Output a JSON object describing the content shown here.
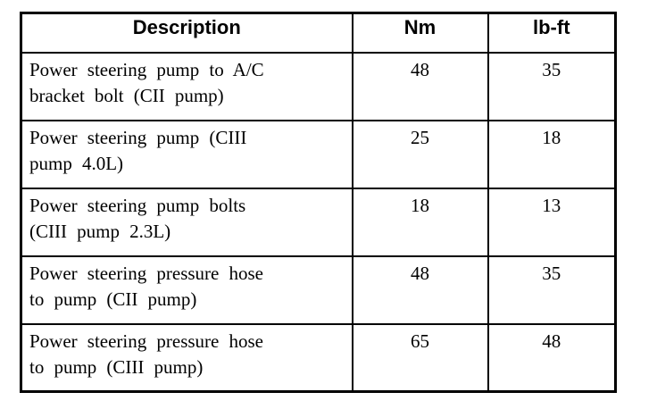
{
  "table": {
    "headers": {
      "description": "Description",
      "nm": "Nm",
      "lbft": "lb-ft"
    },
    "rows": [
      {
        "description_lines": [
          "Power steering pump to A/C",
          "bracket bolt (CII pump)"
        ],
        "nm": "48",
        "lbft": "35"
      },
      {
        "description_lines": [
          "Power steering pump (CIII",
          "pump 4.0L)"
        ],
        "nm": "25",
        "lbft": "18"
      },
      {
        "description_lines": [
          "Power steering pump bolts",
          "(CIII pump 2.3L)"
        ],
        "nm": "18",
        "lbft": "13"
      },
      {
        "description_lines": [
          "Power steering pressure hose",
          "to pump (CII pump)"
        ],
        "nm": "48",
        "lbft": "35"
      },
      {
        "description_lines": [
          "Power steering pressure hose",
          "to pump (CIII pump)"
        ],
        "nm": "65",
        "lbft": "48"
      }
    ],
    "colors": {
      "border": "#000000",
      "background": "#ffffff",
      "text": "#000000"
    }
  }
}
